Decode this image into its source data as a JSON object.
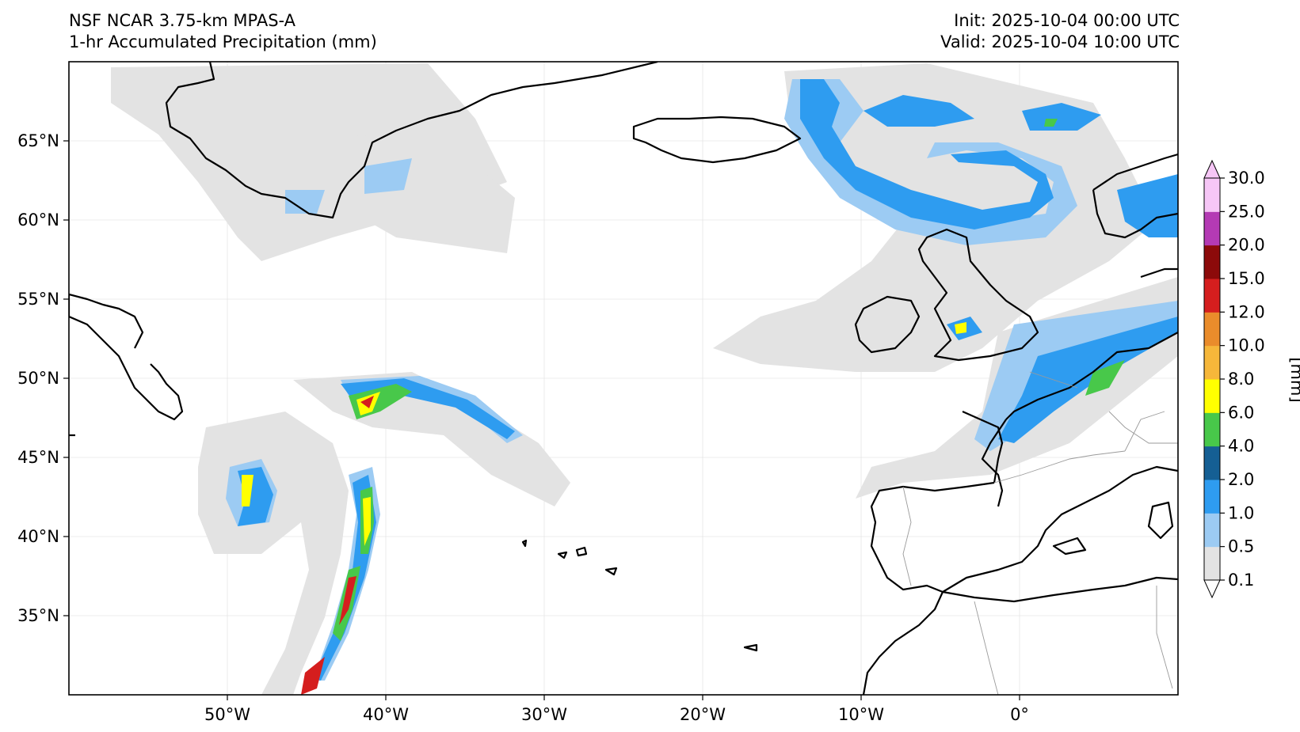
{
  "header": {
    "model": "NSF NCAR 3.75-km MPAS-A",
    "field": "1-hr Accumulated Precipitation (mm)",
    "init": "Init: 2025-10-04 00:00 UTC",
    "valid": "Valid: 2025-10-04 10:00 UTC"
  },
  "map": {
    "lon_ticks": [
      "50°W",
      "40°W",
      "30°W",
      "20°W",
      "10°W",
      "0°"
    ],
    "lat_ticks": [
      "65°N",
      "60°N",
      "55°N",
      "50°N",
      "45°N",
      "40°N",
      "35°N"
    ]
  },
  "colorbar": {
    "unit_label": "[mm]",
    "levels": [
      "0.1",
      "0.5",
      "1.0",
      "2.0",
      "4.0",
      "6.0",
      "8.0",
      "10.0",
      "12.0",
      "15.0",
      "20.0",
      "25.0",
      "30.0"
    ],
    "colors": [
      "#e3e3e3",
      "#9ccbf3",
      "#2e9cf0",
      "#155f94",
      "#48c84a",
      "#ffff00",
      "#f6b73a",
      "#ea8c2b",
      "#d51e1e",
      "#8c0a0a",
      "#b43ab4",
      "#f6c6f6"
    ],
    "under_color": "#ffffff",
    "over_color": "#f6c6f6"
  }
}
